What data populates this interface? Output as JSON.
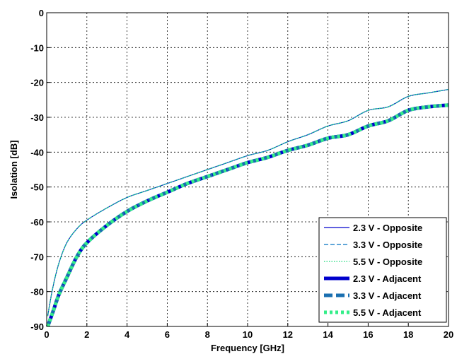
{
  "chart_data": {
    "type": "line",
    "title": "",
    "xlabel": "Frequency [GHz]",
    "ylabel": "Isolation [dB]",
    "xlim": [
      0,
      20
    ],
    "ylim": [
      -90,
      0
    ],
    "xticks": [
      0,
      2,
      4,
      6,
      8,
      10,
      12,
      14,
      16,
      18,
      20
    ],
    "yticks": [
      0,
      -10,
      -20,
      -30,
      -40,
      -50,
      -60,
      -70,
      -80,
      -90
    ],
    "xtick_labels": [
      "0",
      "2",
      "4",
      "6",
      "8",
      "10",
      "12",
      "14",
      "16",
      "18",
      "20"
    ],
    "ytick_labels": [
      "0",
      "-10",
      "-20",
      "-30",
      "-40",
      "-50",
      "-60",
      "-70",
      "-80",
      "-90"
    ],
    "grid": true,
    "legend_position": "bottom-right",
    "series": [
      {
        "name": "2.3 V - Opposite",
        "color": "#0000cc",
        "style": "solid-thin",
        "x": [
          0.05,
          0.3,
          0.6,
          1,
          1.5,
          2,
          3,
          4,
          5,
          6,
          7,
          8,
          9,
          10,
          11,
          12,
          13,
          14,
          15,
          16,
          17,
          18,
          19,
          20
        ],
        "y": [
          -87,
          -79,
          -72,
          -66,
          -62,
          -59.5,
          -56,
          -53,
          -51,
          -49,
          -47,
          -45,
          -43,
          -41,
          -39.5,
          -37,
          -35,
          -32.5,
          -31,
          -28,
          -27,
          -24,
          -23,
          -22
        ]
      },
      {
        "name": "3.3 V - Opposite",
        "color": "#0070c0",
        "style": "dashed-thin",
        "x": [
          0.05,
          0.3,
          0.6,
          1,
          1.5,
          2,
          3,
          4,
          5,
          6,
          7,
          8,
          9,
          10,
          11,
          12,
          13,
          14,
          15,
          16,
          17,
          18,
          19,
          20
        ],
        "y": [
          -87,
          -79,
          -72,
          -66,
          -62,
          -59.5,
          -56,
          -53,
          -51,
          -49,
          -47,
          -45,
          -43,
          -41,
          -39.5,
          -37,
          -35,
          -32.5,
          -31,
          -28,
          -27,
          -24,
          -23,
          -22
        ]
      },
      {
        "name": "5.5 V - Opposite",
        "color": "#33dd88",
        "style": "dotted-thin",
        "x": [
          0.05,
          0.3,
          0.6,
          1,
          1.5,
          2,
          3,
          4,
          5,
          6,
          7,
          8,
          9,
          10,
          11,
          12,
          13,
          14,
          15,
          16,
          17,
          18,
          19,
          20
        ],
        "y": [
          -87,
          -79,
          -72,
          -66,
          -62,
          -59.5,
          -56,
          -53,
          -51,
          -49,
          -47,
          -45,
          -43,
          -41,
          -39.5,
          -37,
          -35,
          -32.5,
          -31,
          -28,
          -27,
          -24,
          -23,
          -22
        ]
      },
      {
        "name": "2.3 V - Adjacent",
        "color": "#0000cc",
        "style": "solid-thick",
        "x": [
          0.05,
          0.3,
          0.6,
          1,
          1.5,
          2,
          3,
          4,
          5,
          6,
          7,
          8,
          9,
          10,
          11,
          12,
          13,
          14,
          15,
          16,
          17,
          18,
          19,
          20
        ],
        "y": [
          -90,
          -86,
          -81,
          -76,
          -70,
          -66,
          -61,
          -57,
          -54,
          -51.5,
          -49,
          -47,
          -45,
          -43,
          -41.5,
          -39.5,
          -38,
          -36,
          -35,
          -32.5,
          -31,
          -28,
          -27,
          -26.5
        ]
      },
      {
        "name": "3.3 V - Adjacent",
        "color": "#1a6fb0",
        "style": "dashed-thick",
        "x": [
          0.05,
          0.3,
          0.6,
          1,
          1.5,
          2,
          3,
          4,
          5,
          6,
          7,
          8,
          9,
          10,
          11,
          12,
          13,
          14,
          15,
          16,
          17,
          18,
          19,
          20
        ],
        "y": [
          -90,
          -86,
          -81,
          -76,
          -70,
          -66,
          -61,
          -57,
          -54,
          -51.5,
          -49,
          -47,
          -45,
          -43,
          -41.5,
          -39.5,
          -38,
          -36,
          -35,
          -32.5,
          -31,
          -28,
          -27,
          -26.5
        ]
      },
      {
        "name": "5.5 V - Adjacent",
        "color": "#33ee88",
        "style": "dotted-thick",
        "x": [
          0.05,
          0.3,
          0.6,
          1,
          1.5,
          2,
          3,
          4,
          5,
          6,
          7,
          8,
          9,
          10,
          11,
          12,
          13,
          14,
          15,
          16,
          17,
          18,
          19,
          20
        ],
        "y": [
          -90,
          -86,
          -81,
          -76,
          -70,
          -66,
          -61,
          -57,
          -54,
          -51.5,
          -49,
          -47,
          -45,
          -43,
          -41.5,
          -39.5,
          -38,
          -36,
          -35,
          -32.5,
          -31,
          -28,
          -27,
          -26.5
        ]
      }
    ]
  }
}
